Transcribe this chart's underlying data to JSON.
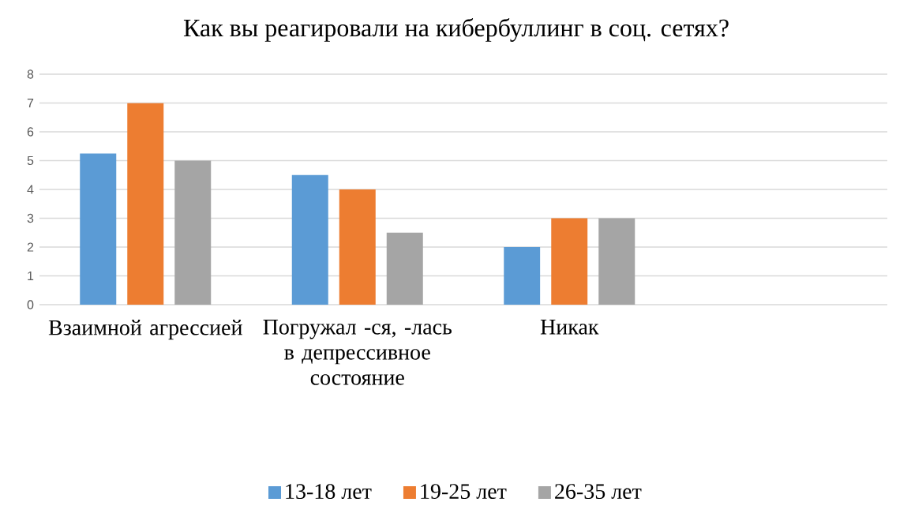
{
  "chart_data": {
    "type": "bar",
    "title": "Как вы реагировали на кибербуллинг в соц. сетях?",
    "categories": [
      "Взаимной агрессией",
      "Погружал -ся, -лась в депрессивное состояние",
      "Никак",
      null
    ],
    "series": [
      {
        "name": "13-18 лет",
        "color": "#5b9bd5",
        "values": [
          5.25,
          4.5,
          2,
          null
        ]
      },
      {
        "name": "19-25 лет",
        "color": "#ed7d31",
        "values": [
          7,
          4,
          3,
          null
        ]
      },
      {
        "name": "26-35 лет",
        "color": "#a5a5a5",
        "values": [
          5,
          2.5,
          3,
          null
        ]
      }
    ],
    "ylim": [
      0,
      8
    ],
    "yticks": [
      0,
      1,
      2,
      3,
      4,
      5,
      6,
      7,
      8
    ],
    "grid": "y",
    "legend": "bottom"
  }
}
